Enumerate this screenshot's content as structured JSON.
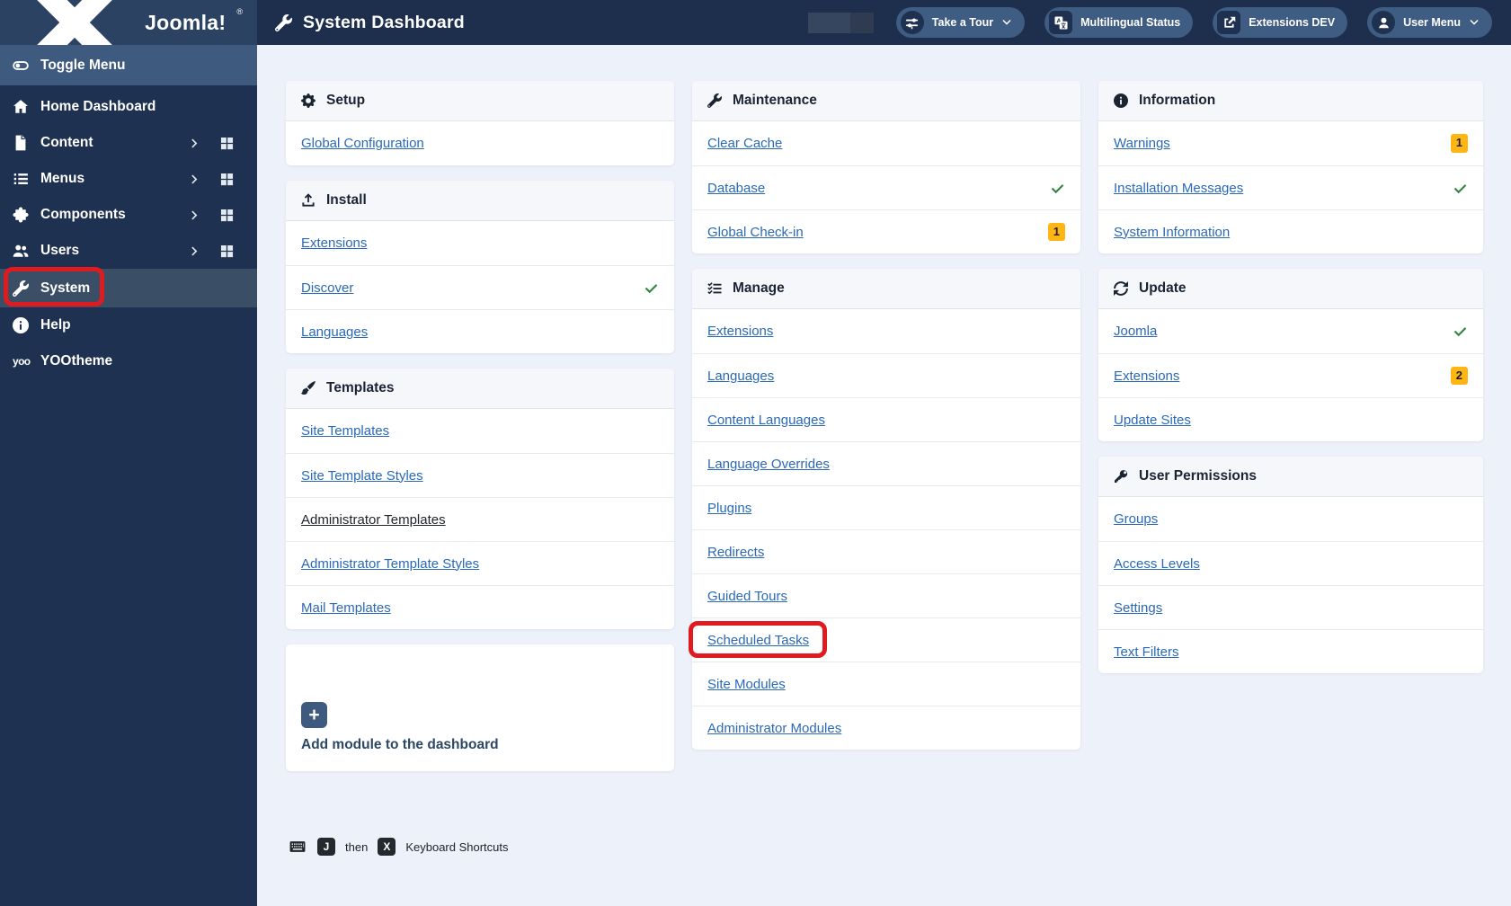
{
  "brand": {
    "logo_text": "Joomla!",
    "reg": "®"
  },
  "page": {
    "title": "System Dashboard"
  },
  "colors": {
    "link": "#2a69b8",
    "badge_bg": "#ffb514",
    "check": "#2e8540",
    "annotation": "#e01b1f",
    "navy": "#1e3150"
  },
  "topbar": {
    "buttons": [
      {
        "label": "Take a Tour",
        "icon": "signpost-icon",
        "shape": "circle",
        "chevron": true
      },
      {
        "label": "Multilingual Status",
        "icon": "translate-icon",
        "shape": "square",
        "chevron": false
      },
      {
        "label": "Extensions DEV",
        "icon": "external-link-icon",
        "shape": "square",
        "chevron": false
      },
      {
        "label": "User Menu",
        "icon": "user-icon",
        "shape": "circle",
        "chevron": true
      }
    ]
  },
  "sidebar": {
    "toggle_label": "Toggle Menu",
    "items": [
      {
        "label": "Home Dashboard",
        "icon": "home-icon",
        "chevron": false,
        "grid": false
      },
      {
        "label": "Content",
        "icon": "content-icon",
        "chevron": true,
        "grid": true
      },
      {
        "label": "Menus",
        "icon": "menus-icon",
        "chevron": true,
        "grid": true
      },
      {
        "label": "Components",
        "icon": "components-icon",
        "chevron": true,
        "grid": true
      },
      {
        "label": "Users",
        "icon": "users-icon",
        "chevron": true,
        "grid": true
      },
      {
        "label": "System",
        "icon": "wrench-icon",
        "chevron": false,
        "grid": false,
        "active": true,
        "annotated": true
      },
      {
        "label": "Help",
        "icon": "help-icon",
        "chevron": false,
        "grid": false
      },
      {
        "label": "YOOtheme",
        "icon": "yootheme-icon",
        "chevron": false,
        "grid": false
      }
    ]
  },
  "columns": [
    [
      {
        "title": "Setup",
        "icon": "gear-icon",
        "rows": [
          {
            "label": "Global Configuration"
          }
        ]
      },
      {
        "title": "Install",
        "icon": "upload-icon",
        "rows": [
          {
            "label": "Extensions"
          },
          {
            "label": "Discover",
            "status": "check"
          },
          {
            "label": "Languages"
          }
        ]
      },
      {
        "title": "Templates",
        "icon": "brush-icon",
        "rows": [
          {
            "label": "Site Templates"
          },
          {
            "label": "Site Template Styles"
          },
          {
            "label": "Administrator Templates",
            "dark": true
          },
          {
            "label": "Administrator Template Styles"
          },
          {
            "label": "Mail Templates"
          }
        ]
      },
      {
        "type": "add-module",
        "label": "Add module to the dashboard"
      }
    ],
    [
      {
        "title": "Maintenance",
        "icon": "wrench-icon",
        "rows": [
          {
            "label": "Clear Cache"
          },
          {
            "label": "Database",
            "status": "check"
          },
          {
            "label": "Global Check-in",
            "badge": "1"
          }
        ]
      },
      {
        "title": "Manage",
        "icon": "list-check-icon",
        "rows": [
          {
            "label": "Extensions"
          },
          {
            "label": "Languages"
          },
          {
            "label": "Content Languages"
          },
          {
            "label": "Language Overrides"
          },
          {
            "label": "Plugins"
          },
          {
            "label": "Redirects"
          },
          {
            "label": "Guided Tours"
          },
          {
            "label": "Scheduled Tasks",
            "annotated": true
          },
          {
            "label": "Site Modules"
          },
          {
            "label": "Administrator Modules"
          }
        ]
      }
    ],
    [
      {
        "title": "Information",
        "icon": "info-icon",
        "rows": [
          {
            "label": "Warnings",
            "badge": "1"
          },
          {
            "label": "Installation Messages",
            "status": "check"
          },
          {
            "label": "System Information"
          }
        ]
      },
      {
        "title": "Update",
        "icon": "refresh-icon",
        "rows": [
          {
            "label": "Joomla",
            "status": "check"
          },
          {
            "label": "Extensions",
            "badge": "2"
          },
          {
            "label": "Update Sites"
          }
        ]
      },
      {
        "title": "User Permissions",
        "icon": "key-icon",
        "rows": [
          {
            "label": "Groups"
          },
          {
            "label": "Access Levels"
          },
          {
            "label": "Settings"
          },
          {
            "label": "Text Filters"
          }
        ]
      }
    ]
  ],
  "add_module": {
    "label": "Add module to the dashboard",
    "plus": "+"
  },
  "shortcuts": {
    "key1": "J",
    "sep": "then",
    "key2": "X",
    "label": "Keyboard Shortcuts"
  }
}
